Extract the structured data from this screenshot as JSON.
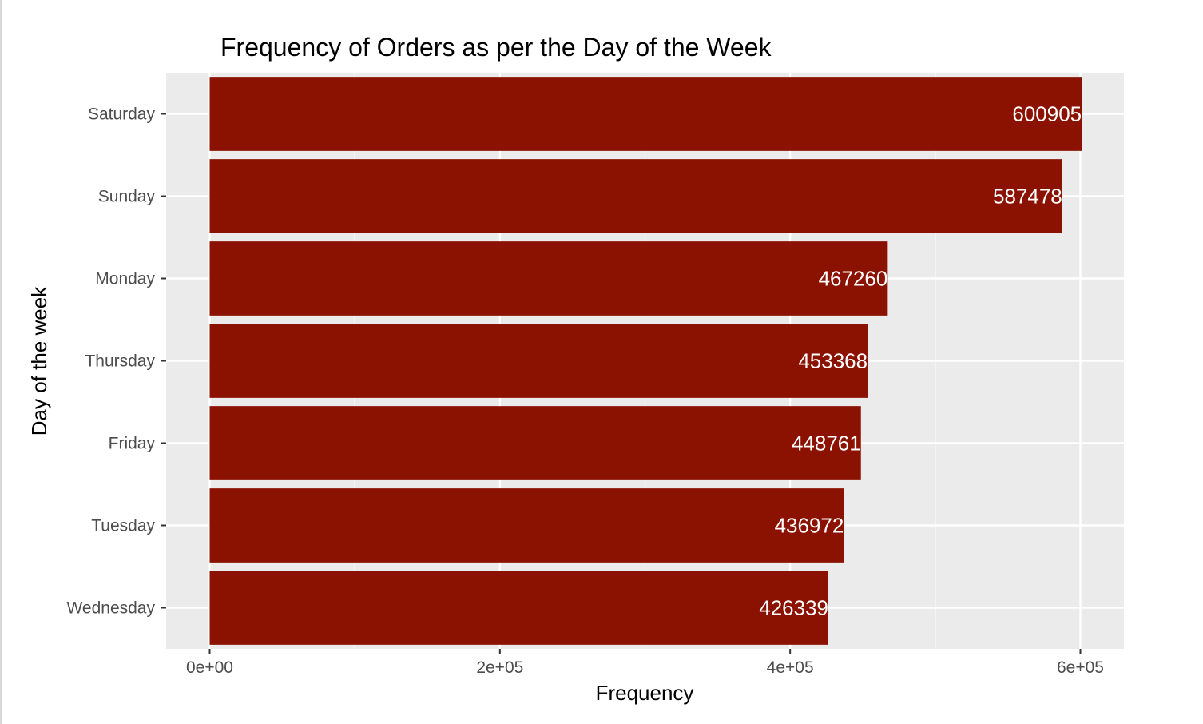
{
  "chart_data": {
    "type": "bar",
    "orientation": "horizontal",
    "title": "Frequency of Orders as per the Day of the Week",
    "xlabel": "Frequency",
    "ylabel": "Day of the week",
    "categories": [
      "Saturday",
      "Sunday",
      "Monday",
      "Thursday",
      "Friday",
      "Tuesday",
      "Wednesday"
    ],
    "values": [
      600905,
      587478,
      467260,
      453368,
      448761,
      436972,
      426339
    ],
    "data_labels": [
      "600905",
      "587478",
      "467260",
      "453368",
      "448761",
      "436972",
      "426339"
    ],
    "xticks": [
      0,
      200000,
      400000,
      600000
    ],
    "xtick_labels": [
      "0e+00",
      "2e+05",
      "4e+05",
      "6e+05"
    ],
    "xlim": [
      -30000,
      630000
    ],
    "bar_color": "#8B1100",
    "panel_background": "#EBEBEB",
    "gridline_color": "#FFFFFF",
    "grid": true,
    "legend": "none"
  }
}
